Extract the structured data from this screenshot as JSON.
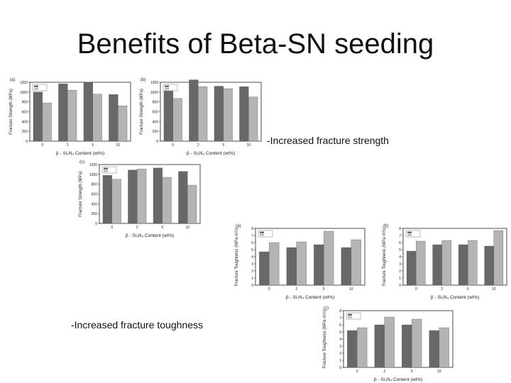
{
  "slide": {
    "title": "Benefits of Beta-SN seeding",
    "caption_strength": "-Increased fracture strength",
    "caption_toughness": "-Increased fracture toughness"
  },
  "colors": {
    "dark_bar": "#686868",
    "light_bar": "#b4b4b4",
    "axis": "#222222"
  },
  "chart_data": [
    {
      "type": "bar",
      "panel": "(a)",
      "quantity": "strength",
      "categories": [
        "0",
        "2",
        "5",
        "10"
      ],
      "series": [
        {
          "values": [
            1000,
            1170,
            1200,
            950
          ]
        },
        {
          "values": [
            780,
            1040,
            960,
            720
          ]
        }
      ],
      "ylim": [
        0,
        1200
      ],
      "yticks": [
        0,
        200,
        400,
        600,
        800,
        1000,
        1200
      ],
      "ylabel": "Fracture Strength (MPa)",
      "xlabel": "β - Si₃N₄ Content (wt%)",
      "grid": false,
      "legend": "top-left"
    },
    {
      "type": "bar",
      "panel": "(b)",
      "quantity": "strength",
      "categories": [
        "0",
        "2",
        "5",
        "10"
      ],
      "series": [
        {
          "values": [
            1050,
            1250,
            1120,
            1110
          ]
        },
        {
          "values": [
            870,
            1110,
            1070,
            900
          ]
        }
      ],
      "ylim": [
        0,
        1200
      ],
      "yticks": [
        0,
        200,
        400,
        600,
        800,
        1000,
        1200
      ],
      "ylabel": "Fracture Strength (MPa)",
      "xlabel": "β - Si₃N₄ Content (wt%)",
      "grid": false,
      "legend": "top-left"
    },
    {
      "type": "bar",
      "panel": "(c)",
      "quantity": "strength",
      "categories": [
        "0",
        "2",
        "5",
        "10"
      ],
      "series": [
        {
          "values": [
            980,
            1090,
            1130,
            1060
          ]
        },
        {
          "values": [
            900,
            1110,
            940,
            780
          ]
        }
      ],
      "ylim": [
        0,
        1200
      ],
      "yticks": [
        0,
        200,
        400,
        600,
        800,
        1000,
        1200
      ],
      "ylabel": "Fracture Strength (MPa)",
      "xlabel": "β - Si₃N₄ Content (wt%)",
      "grid": false,
      "legend": "top-left"
    },
    {
      "type": "bar",
      "panel": "(a)",
      "quantity": "toughness",
      "categories": [
        "0",
        "2",
        "5",
        "10"
      ],
      "series": [
        {
          "values": [
            4.7,
            5.3,
            5.7,
            5.3
          ]
        },
        {
          "values": [
            6.0,
            6.1,
            7.6,
            6.4
          ]
        }
      ],
      "ylim": [
        0,
        8
      ],
      "yticks": [
        0,
        1,
        2,
        3,
        4,
        5,
        6,
        7,
        8
      ],
      "ylabel": "Fracture Toughness (MPa·m½)",
      "xlabel": "β - Si₃N₄ Content (wt%)",
      "grid": false,
      "legend": "top-left"
    },
    {
      "type": "bar",
      "panel": "(b)",
      "quantity": "toughness",
      "categories": [
        "0",
        "2",
        "5",
        "10"
      ],
      "series": [
        {
          "values": [
            4.8,
            5.7,
            5.7,
            5.5
          ]
        },
        {
          "values": [
            6.2,
            6.3,
            6.3,
            7.7
          ]
        }
      ],
      "ylim": [
        0,
        8
      ],
      "yticks": [
        0,
        1,
        2,
        3,
        4,
        5,
        6,
        7,
        8
      ],
      "ylabel": "Fracture Toughness (MPa·m½)",
      "xlabel": "β - Si₃N₄ Content (wt%)",
      "grid": false,
      "legend": "top-left"
    },
    {
      "type": "bar",
      "panel": "(c)",
      "quantity": "toughness",
      "categories": [
        "0",
        "2",
        "5",
        "10"
      ],
      "series": [
        {
          "values": [
            5.2,
            6.0,
            6.0,
            5.2
          ]
        },
        {
          "values": [
            5.6,
            7.1,
            6.8,
            5.6
          ]
        }
      ],
      "ylim": [
        0,
        8
      ],
      "yticks": [
        0,
        1,
        2,
        3,
        4,
        5,
        6,
        7,
        8
      ],
      "ylabel": "Fracture Toughness (MPa·m½)",
      "xlabel": "β - Si₃N₄ Content (wt%)",
      "grid": false,
      "legend": "top-left"
    }
  ]
}
